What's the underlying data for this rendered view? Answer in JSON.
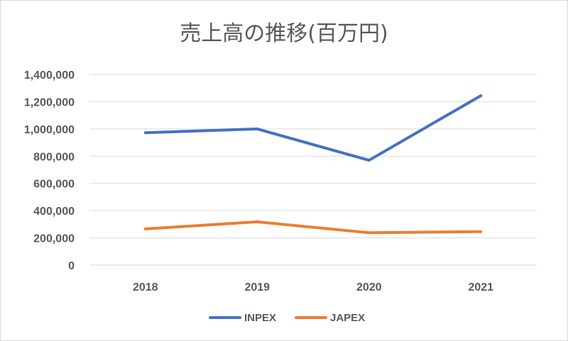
{
  "chart_data": {
    "type": "line",
    "title": "売上高の推移(百万円)",
    "categories": [
      "2018",
      "2019",
      "2020",
      "2021"
    ],
    "series": [
      {
        "name": "INPEX",
        "color": "#4472C4",
        "values": [
          972000,
          1000000,
          770000,
          1244000
        ]
      },
      {
        "name": "JAPEX",
        "color": "#ED7D31",
        "values": [
          266000,
          318000,
          238000,
          246000
        ]
      }
    ],
    "ylim": [
      0,
      1400000
    ],
    "yticks": [
      "0",
      "200,000",
      "400,000",
      "600,000",
      "800,000",
      "1,000,000",
      "1,200,000",
      "1,400,000"
    ],
    "grid": true,
    "legend": "bottom"
  }
}
